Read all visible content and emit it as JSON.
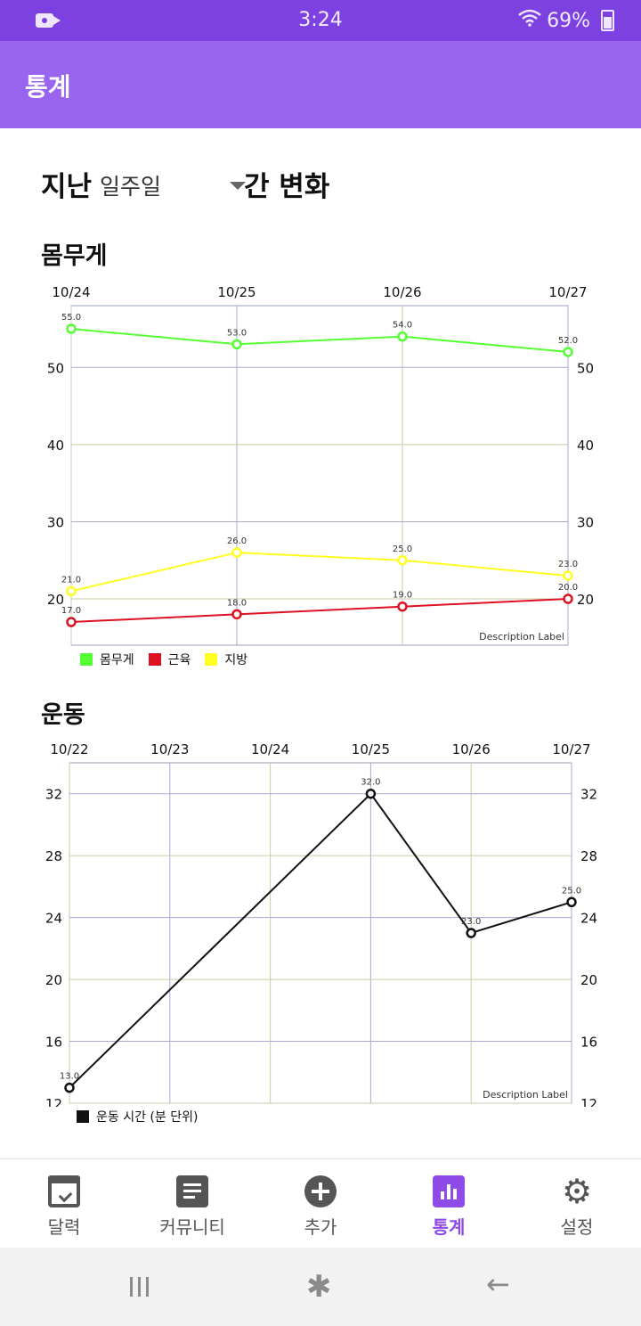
{
  "status_bar": {
    "time": "3:24",
    "battery": "69%"
  },
  "app_bar": {
    "title": "통계"
  },
  "period": {
    "prefix": "지난",
    "selected": "일주일",
    "suffix": "간 변화"
  },
  "sections": {
    "body": "몸무게",
    "exercise": "운동"
  },
  "description_label": "Description Label",
  "charts": {
    "body": {
      "type": "line",
      "x": [
        "10/24",
        "10/25",
        "10/26",
        "10/27"
      ],
      "y_ticks": [
        20,
        30,
        40,
        50
      ],
      "ylim": [
        14,
        58
      ],
      "grid": true,
      "series": [
        {
          "name": "몸무게",
          "color": "#55ff33",
          "values": [
            55.0,
            53.0,
            54.0,
            52.0
          ],
          "labels": [
            "55.0",
            "53.0",
            "54.0",
            "52.0"
          ]
        },
        {
          "name": "근육",
          "color": "#dd1122",
          "values": [
            17.0,
            18.0,
            19.0,
            20.0
          ],
          "labels": [
            "17.0",
            "18.0",
            "19.0",
            "20.0"
          ]
        },
        {
          "name": "지방",
          "color": "#ffff22",
          "values": [
            21.0,
            26.0,
            25.0,
            23.0
          ],
          "labels": [
            "21.0",
            "26.0",
            "25.0",
            "23.0"
          ]
        }
      ],
      "legend_position": "bottom-left"
    },
    "exercise": {
      "type": "line",
      "x": [
        "10/22",
        "10/23",
        "10/24",
        "10/25",
        "10/26",
        "10/27"
      ],
      "y_ticks": [
        12,
        16,
        20,
        24,
        28,
        32
      ],
      "ylim": [
        12,
        34
      ],
      "grid": true,
      "series": [
        {
          "name": "운동 시간 (분 단위)",
          "color": "#111111",
          "points": [
            {
              "x": "10/22",
              "y": 13.0
            },
            {
              "x": "10/25",
              "y": 32.0
            },
            {
              "x": "10/26",
              "y": 23.0
            },
            {
              "x": "10/27",
              "y": 25.0
            }
          ],
          "labels": [
            "13.0",
            "32.0",
            "23.0",
            "25.0"
          ]
        }
      ],
      "legend_position": "bottom-left"
    }
  },
  "chart_data": [
    {
      "type": "line",
      "title": "몸무게",
      "categories": [
        "10/24",
        "10/25",
        "10/26",
        "10/27"
      ],
      "series": [
        {
          "name": "몸무게",
          "values": [
            55.0,
            53.0,
            54.0,
            52.0
          ]
        },
        {
          "name": "근육",
          "values": [
            17.0,
            18.0,
            19.0,
            20.0
          ]
        },
        {
          "name": "지방",
          "values": [
            21.0,
            26.0,
            25.0,
            23.0
          ]
        }
      ],
      "ylim": [
        14,
        58
      ]
    },
    {
      "type": "line",
      "title": "운동",
      "categories": [
        "10/22",
        "10/23",
        "10/24",
        "10/25",
        "10/26",
        "10/27"
      ],
      "series": [
        {
          "name": "운동 시간 (분 단위)",
          "x": [
            "10/22",
            "10/25",
            "10/26",
            "10/27"
          ],
          "values": [
            13.0,
            32.0,
            23.0,
            25.0
          ]
        }
      ],
      "ylim": [
        12,
        34
      ]
    }
  ],
  "bottom_nav": {
    "items": [
      {
        "label": "달력",
        "icon": "calendar-check-icon"
      },
      {
        "label": "커뮤니티",
        "icon": "article-icon"
      },
      {
        "label": "추가",
        "icon": "add-circle-icon"
      },
      {
        "label": "통계",
        "icon": "bar-chart-icon",
        "active": true
      },
      {
        "label": "설정",
        "icon": "gear-icon"
      }
    ],
    "active_color": "#8e4be8"
  },
  "colors": {
    "status_bar": "#7c41e0",
    "app_bar": "#9a65ee",
    "accent": "#8e4be8"
  }
}
